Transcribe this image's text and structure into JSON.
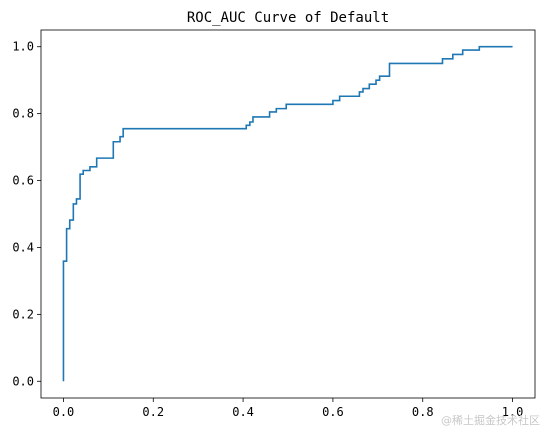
{
  "chart_data": {
    "type": "line",
    "title": "ROC_AUC Curve of Default",
    "xlabel": "",
    "ylabel": "",
    "xlim": [
      -0.05,
      1.05
    ],
    "ylim": [
      -0.05,
      1.05
    ],
    "grid": false,
    "legend": "none",
    "line_color": "#1f77b4",
    "xticks": [
      0.0,
      0.2,
      0.4,
      0.6,
      0.8,
      1.0
    ],
    "xtick_labels": [
      "0.0",
      "0.2",
      "0.4",
      "0.6",
      "0.8",
      "1.0"
    ],
    "yticks": [
      0.0,
      0.2,
      0.4,
      0.6,
      0.8,
      1.0
    ],
    "ytick_labels": [
      "0.0",
      "0.2",
      "0.4",
      "0.6",
      "0.8",
      "1.0"
    ],
    "series": [
      {
        "x": [
          0.0,
          0.0,
          0.007,
          0.007,
          0.014,
          0.014,
          0.022,
          0.022,
          0.029,
          0.029,
          0.037,
          0.037,
          0.044,
          0.044,
          0.059,
          0.059,
          0.074,
          0.074,
          0.081,
          0.081,
          0.111,
          0.111,
          0.126,
          0.126,
          0.133,
          0.133,
          0.407,
          0.407,
          0.415,
          0.415,
          0.422,
          0.422,
          0.43,
          0.43,
          0.459,
          0.459,
          0.474,
          0.474,
          0.496,
          0.496,
          0.6,
          0.6,
          0.615,
          0.615,
          0.659,
          0.659,
          0.667,
          0.667,
          0.681,
          0.681,
          0.696,
          0.696,
          0.704,
          0.704,
          0.711,
          0.711,
          0.726,
          0.726,
          0.741,
          0.741,
          0.844,
          0.844,
          0.867,
          0.867,
          0.889,
          0.889,
          0.926,
          0.926,
          1.0
        ],
        "y": [
          0.0,
          0.359,
          0.359,
          0.456,
          0.456,
          0.482,
          0.482,
          0.53,
          0.53,
          0.545,
          0.545,
          0.619,
          0.619,
          0.63,
          0.63,
          0.641,
          0.641,
          0.667,
          0.667,
          0.667,
          0.667,
          0.716,
          0.716,
          0.731,
          0.731,
          0.755,
          0.755,
          0.765,
          0.765,
          0.775,
          0.775,
          0.79,
          0.79,
          0.79,
          0.79,
          0.805,
          0.805,
          0.815,
          0.815,
          0.828,
          0.828,
          0.839,
          0.839,
          0.852,
          0.852,
          0.865,
          0.865,
          0.875,
          0.875,
          0.888,
          0.888,
          0.9,
          0.9,
          0.912,
          0.912,
          0.912,
          0.912,
          0.95,
          0.95,
          0.95,
          0.95,
          0.964,
          0.964,
          0.977,
          0.977,
          0.99,
          0.99,
          1.0,
          1.0
        ]
      }
    ]
  },
  "watermark": "@稀土掘金技术社区"
}
